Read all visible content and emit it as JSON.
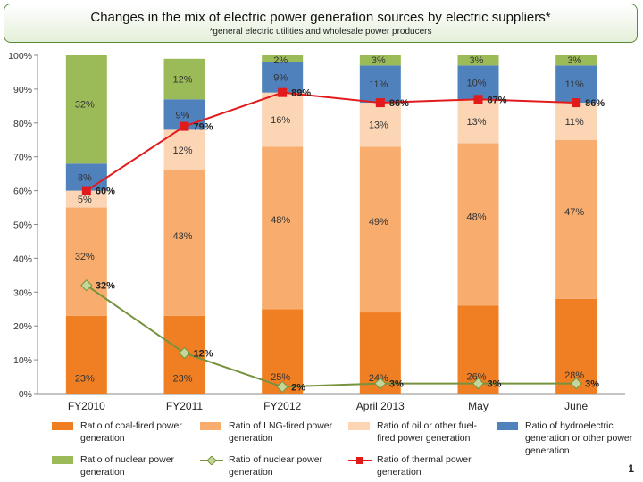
{
  "header": {
    "title": "Changes in the mix of electric power generation sources by electric suppliers*",
    "subtitle": "*general electric utilities and wholesale power producers"
  },
  "page_number": "1",
  "colors": {
    "coal": "#f07f23",
    "lng": "#f8ac6e",
    "oil": "#fcd5b5",
    "hydro": "#4f81bd",
    "nuclear": "#9bbb59",
    "nuclear_line": "#76923c",
    "thermal_line": "#e31a1c"
  },
  "chart_data": {
    "type": "bar",
    "stacked": true,
    "title": "Changes in the mix of electric power generation sources by electric suppliers*",
    "categories": [
      "FY2010",
      "FY2011",
      "FY2012",
      "April 2013",
      "May",
      "June"
    ],
    "ylim": [
      0,
      100
    ],
    "yticks": [
      "0%",
      "10%",
      "20%",
      "30%",
      "40%",
      "50%",
      "60%",
      "70%",
      "80%",
      "90%",
      "100%"
    ],
    "series": [
      {
        "name": "Ratio of coal-fired power generation",
        "key": "coal",
        "values": [
          23,
          23,
          25,
          24,
          26,
          28
        ],
        "labels": [
          "23%",
          "23%",
          "25%",
          "24%",
          "26%",
          "28%"
        ]
      },
      {
        "name": "Ratio of LNG-fired power generation",
        "key": "lng",
        "values": [
          32,
          43,
          48,
          49,
          48,
          47
        ],
        "labels": [
          "32%",
          "43%",
          "48%",
          "49%",
          "48%",
          "47%"
        ]
      },
      {
        "name": "Ratio of oil or other fuel-fired power generation",
        "key": "oil",
        "values": [
          5,
          12,
          16,
          13,
          13,
          11
        ],
        "labels": [
          "5%",
          "12%",
          "16%",
          "13%",
          "13%",
          "11%"
        ]
      },
      {
        "name": "Ratio of hydroelectric generation or other power generation",
        "key": "hydro",
        "values": [
          8,
          9,
          9,
          11,
          10,
          11
        ],
        "labels": [
          "8%",
          "9%",
          "9%",
          "11%",
          "10%",
          "11%"
        ]
      },
      {
        "name": "Ratio of nuclear power generation",
        "key": "nuclear",
        "values": [
          32,
          12,
          2,
          3,
          3,
          3
        ],
        "labels": [
          "32%",
          "12%",
          "2%",
          "3%",
          "3%",
          "3%"
        ]
      }
    ],
    "lines": [
      {
        "name": "Ratio of nuclear power generation",
        "key": "nuclear_line",
        "marker": "diamond",
        "values": [
          32,
          12,
          2,
          3,
          3,
          3
        ],
        "labels": [
          "32%",
          "12%",
          "2%",
          "3%",
          "3%",
          "3%"
        ]
      },
      {
        "name": "Ratio of thermal power generation",
        "key": "thermal_line",
        "marker": "square",
        "values": [
          60,
          79,
          89,
          86,
          87,
          86
        ],
        "labels": [
          "60%",
          "79%",
          "89%",
          "86%",
          "87%",
          "86%"
        ]
      }
    ],
    "legend": [
      {
        "label": "Ratio of coal-fired power generation",
        "swatch": "rect",
        "key": "coal"
      },
      {
        "label": "Ratio of LNG-fired power generation",
        "swatch": "rect",
        "key": "lng"
      },
      {
        "label": "Ratio of oil or other fuel-fired power generation",
        "swatch": "rect",
        "key": "oil"
      },
      {
        "label": "Ratio of hydroelectric generation or other power generation",
        "swatch": "rect",
        "key": "hydro"
      },
      {
        "label": "Ratio of nuclear power generation",
        "swatch": "rect",
        "key": "nuclear"
      },
      {
        "label": "Ratio of nuclear power generation",
        "swatch": "diamond-line",
        "key": "nuclear_line"
      },
      {
        "label": "Ratio of thermal power generation",
        "swatch": "square-line",
        "key": "thermal_line"
      }
    ]
  }
}
